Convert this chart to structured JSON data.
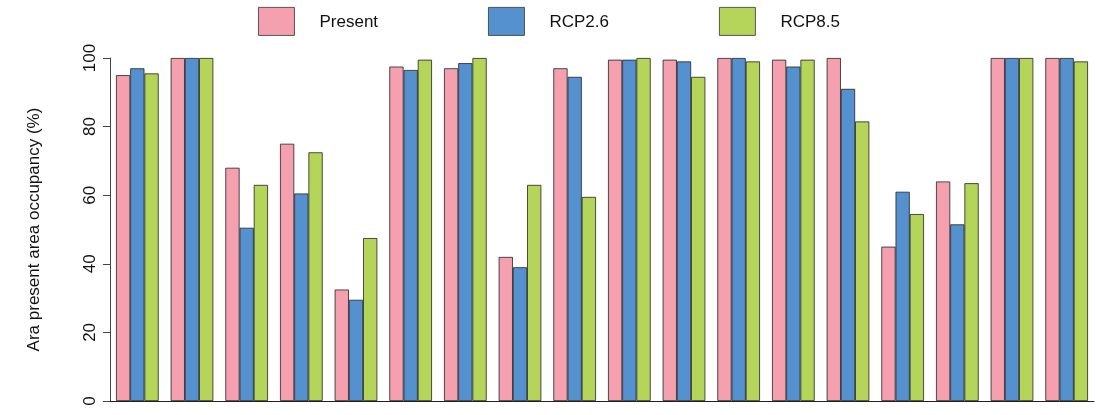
{
  "chart_data": {
    "type": "bar",
    "ylabel": "Ara present area occupancy (%)",
    "categories": [
      null,
      null,
      null,
      null,
      null,
      null,
      null,
      null,
      null,
      null,
      null,
      null,
      null,
      null,
      null,
      null,
      null,
      null
    ],
    "series": [
      {
        "name": "Present",
        "color": "#f4a0ae",
        "values": [
          95,
          100,
          68,
          75,
          32.5,
          97.5,
          97,
          42,
          97,
          99.5,
          99.5,
          100,
          99.5,
          100,
          45,
          64,
          100,
          100
        ]
      },
      {
        "name": "RCP2.6",
        "color": "#5591cf",
        "values": [
          97,
          100,
          50.5,
          60.5,
          29.5,
          96.5,
          98.5,
          39,
          94.5,
          99.5,
          99,
          100,
          97.5,
          91,
          61,
          51.5,
          100,
          100
        ]
      },
      {
        "name": "RCP8.5",
        "color": "#b5d55a",
        "values": [
          95.5,
          100,
          63,
          72.5,
          47.5,
          99.5,
          100,
          63,
          59.5,
          100,
          94.5,
          99,
          99.5,
          81.5,
          54.5,
          63.5,
          100,
          99
        ]
      }
    ],
    "ylim": [
      0,
      100
    ],
    "yticks": [
      0,
      20,
      40,
      60,
      80,
      100
    ],
    "grid": false,
    "legend": "top"
  }
}
